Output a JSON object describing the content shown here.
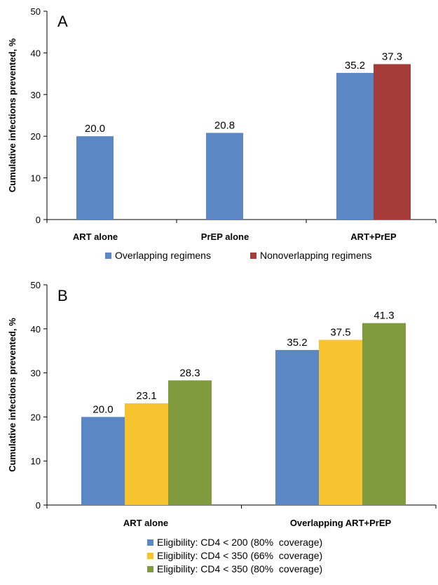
{
  "chart_data": [
    {
      "type": "bar",
      "panel_label": "A",
      "ylabel": "Cumulative infections prevented, %",
      "xlabel": "",
      "ylim": [
        0,
        50
      ],
      "yticks": [
        0,
        10,
        20,
        30,
        40,
        50
      ],
      "categories": [
        "ART alone",
        "PrEP alone",
        "ART+PrEP"
      ],
      "series": [
        {
          "name": "Overlapping regimens",
          "color": "#5b87c5",
          "values": [
            20.0,
            20.8,
            35.2
          ]
        },
        {
          "name": "Nonoverlapping regimens",
          "color": "#a63c3a",
          "values": [
            null,
            null,
            37.3
          ]
        }
      ],
      "value_labels": [
        [
          "20.0",
          "20.8",
          "35.2"
        ],
        [
          null,
          null,
          "37.3"
        ]
      ],
      "grid": false,
      "legend": "bottom"
    },
    {
      "type": "bar",
      "panel_label": "B",
      "ylabel": "Cumulative infections prevented, %",
      "xlabel": "",
      "ylim": [
        0,
        50
      ],
      "yticks": [
        0,
        10,
        20,
        30,
        40,
        50
      ],
      "categories": [
        "ART alone",
        "Overlapping ART+PrEP"
      ],
      "series": [
        {
          "name": "Eligibility: CD4 < 200 (80%  coverage)",
          "color": "#5b87c5",
          "values": [
            20.0,
            35.2
          ]
        },
        {
          "name": "Eligibility: CD4 < 350 (66%  coverage)",
          "color": "#f7c32e",
          "values": [
            23.1,
            37.5
          ]
        },
        {
          "name": "Eligibility: CD4 < 350 (80%  coverage)",
          "color": "#7f9b3d",
          "values": [
            28.3,
            41.3
          ]
        }
      ],
      "value_labels": [
        [
          "20.0",
          "35.2"
        ],
        [
          "23.1",
          "37.5"
        ],
        [
          "28.3",
          "41.3"
        ]
      ],
      "grid": false,
      "legend": "bottom"
    }
  ]
}
